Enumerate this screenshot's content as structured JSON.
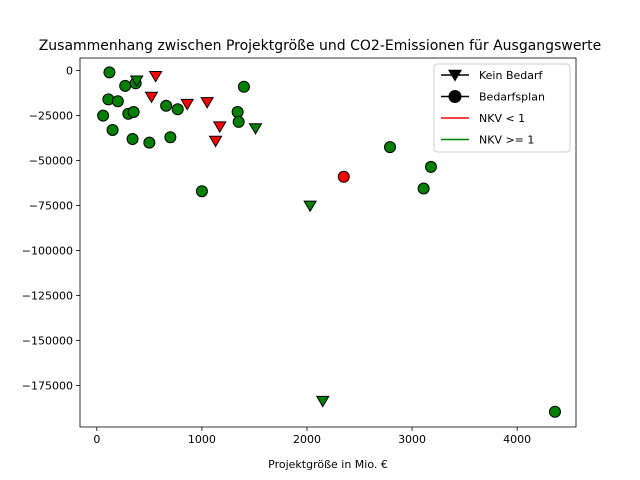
{
  "chart_data": {
    "type": "scatter",
    "title": "Zusammenhang zwischen Projektgröße und CO2-Emissionen für Ausgangswerte",
    "xlabel": "Projektgröße in Mio. €",
    "ylabel": "",
    "xlim": [
      -160,
      4560
    ],
    "ylim": [
      -198000,
      7000
    ],
    "xticks": [
      0,
      1000,
      2000,
      3000,
      4000
    ],
    "yticks": [
      0,
      -25000,
      -50000,
      -75000,
      -100000,
      -125000,
      -150000,
      -175000
    ],
    "xtick_labels": [
      "0",
      "1000",
      "2000",
      "3000",
      "4000"
    ],
    "ytick_labels": [
      "0",
      "−25000",
      "−50000",
      "−75000",
      "−100000",
      "−125000",
      "−150000",
      "−175000"
    ],
    "grid": false,
    "legend_position": "top-right",
    "colors": {
      "green": "#008000",
      "red": "#ff0000",
      "black": "#000000"
    },
    "legend": [
      {
        "label": "Kein Bedarf",
        "kind": "triangle"
      },
      {
        "label": "Bedarfsplan",
        "kind": "circle"
      },
      {
        "label": "NKV < 1",
        "kind": "line",
        "color": "#ff0000"
      },
      {
        "label": "NKV >= 1",
        "kind": "line",
        "color": "#008000"
      }
    ],
    "series": [
      {
        "name": "Bedarfsplan",
        "marker": "circle",
        "points": [
          {
            "x": 120,
            "y": -1000,
            "c": "green"
          },
          {
            "x": 110,
            "y": -16000,
            "c": "green"
          },
          {
            "x": 200,
            "y": -17000,
            "c": "green"
          },
          {
            "x": 270,
            "y": -8500,
            "c": "green"
          },
          {
            "x": 370,
            "y": -7000,
            "c": "green"
          },
          {
            "x": 60,
            "y": -25000,
            "c": "green"
          },
          {
            "x": 300,
            "y": -24000,
            "c": "green"
          },
          {
            "x": 350,
            "y": -23000,
            "c": "green"
          },
          {
            "x": 150,
            "y": -33000,
            "c": "green"
          },
          {
            "x": 340,
            "y": -38000,
            "c": "green"
          },
          {
            "x": 500,
            "y": -40000,
            "c": "green"
          },
          {
            "x": 660,
            "y": -19500,
            "c": "green"
          },
          {
            "x": 770,
            "y": -21500,
            "c": "green"
          },
          {
            "x": 700,
            "y": -37000,
            "c": "green"
          },
          {
            "x": 1340,
            "y": -23000,
            "c": "green"
          },
          {
            "x": 1350,
            "y": -28500,
            "c": "green"
          },
          {
            "x": 1400,
            "y": -9000,
            "c": "green"
          },
          {
            "x": 1000,
            "y": -67000,
            "c": "green"
          },
          {
            "x": 2350,
            "y": -59000,
            "c": "red"
          },
          {
            "x": 2790,
            "y": -42500,
            "c": "green"
          },
          {
            "x": 3180,
            "y": -53500,
            "c": "green"
          },
          {
            "x": 3110,
            "y": -65500,
            "c": "green"
          },
          {
            "x": 4360,
            "y": -189500,
            "c": "green"
          }
        ]
      },
      {
        "name": "Kein Bedarf",
        "marker": "triangle",
        "points": [
          {
            "x": 380,
            "y": -5500,
            "c": "green"
          },
          {
            "x": 560,
            "y": -3000,
            "c": "red"
          },
          {
            "x": 520,
            "y": -14500,
            "c": "red"
          },
          {
            "x": 860,
            "y": -18500,
            "c": "red"
          },
          {
            "x": 1050,
            "y": -17500,
            "c": "red"
          },
          {
            "x": 1170,
            "y": -31000,
            "c": "red"
          },
          {
            "x": 1130,
            "y": -39000,
            "c": "red"
          },
          {
            "x": 1510,
            "y": -32000,
            "c": "green"
          },
          {
            "x": 2030,
            "y": -75000,
            "c": "green"
          },
          {
            "x": 2150,
            "y": -183500,
            "c": "green"
          }
        ]
      }
    ]
  }
}
